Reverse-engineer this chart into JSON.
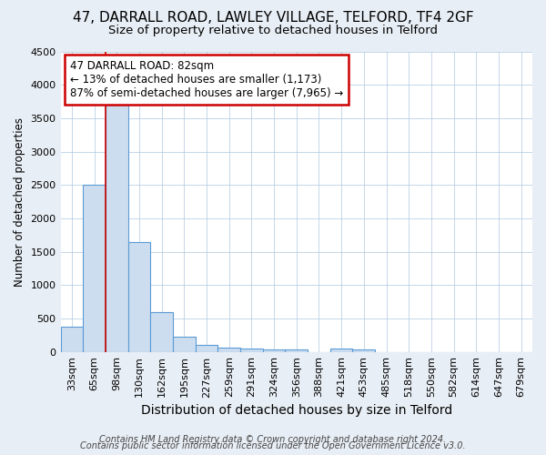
{
  "title1": "47, DARRALL ROAD, LAWLEY VILLAGE, TELFORD, TF4 2GF",
  "title2": "Size of property relative to detached houses in Telford",
  "xlabel": "Distribution of detached houses by size in Telford",
  "ylabel": "Number of detached properties",
  "categories": [
    "33sqm",
    "65sqm",
    "98sqm",
    "130sqm",
    "162sqm",
    "195sqm",
    "227sqm",
    "259sqm",
    "291sqm",
    "324sqm",
    "356sqm",
    "388sqm",
    "421sqm",
    "453sqm",
    "485sqm",
    "518sqm",
    "550sqm",
    "582sqm",
    "614sqm",
    "647sqm",
    "679sqm"
  ],
  "values": [
    370,
    2500,
    3720,
    1650,
    600,
    230,
    100,
    60,
    55,
    30,
    30,
    0,
    55,
    30,
    0,
    0,
    0,
    0,
    0,
    0,
    0
  ],
  "bar_color": "#ccddf0",
  "bar_edge_color": "#5b9bd5",
  "red_line_x": 1.5,
  "ylim": [
    0,
    4500
  ],
  "yticks": [
    0,
    500,
    1000,
    1500,
    2000,
    2500,
    3000,
    3500,
    4000,
    4500
  ],
  "annotation_text": "47 DARRALL ROAD: 82sqm\n← 13% of detached houses are smaller (1,173)\n87% of semi-detached houses are larger (7,965) →",
  "annotation_box_color": "#ffffff",
  "annotation_box_edge": "#cc0000",
  "footnote1": "Contains HM Land Registry data © Crown copyright and database right 2024.",
  "footnote2": "Contains public sector information licensed under the Open Government Licence v3.0.",
  "title1_fontsize": 11,
  "title2_fontsize": 9.5,
  "xlabel_fontsize": 10,
  "ylabel_fontsize": 8.5,
  "tick_fontsize": 8,
  "annotation_fontsize": 8.5,
  "footnote_fontsize": 7,
  "fig_bg_color": "#e8eef5",
  "plot_bg_color": "#ffffff",
  "grid_color": "#aec8e0"
}
